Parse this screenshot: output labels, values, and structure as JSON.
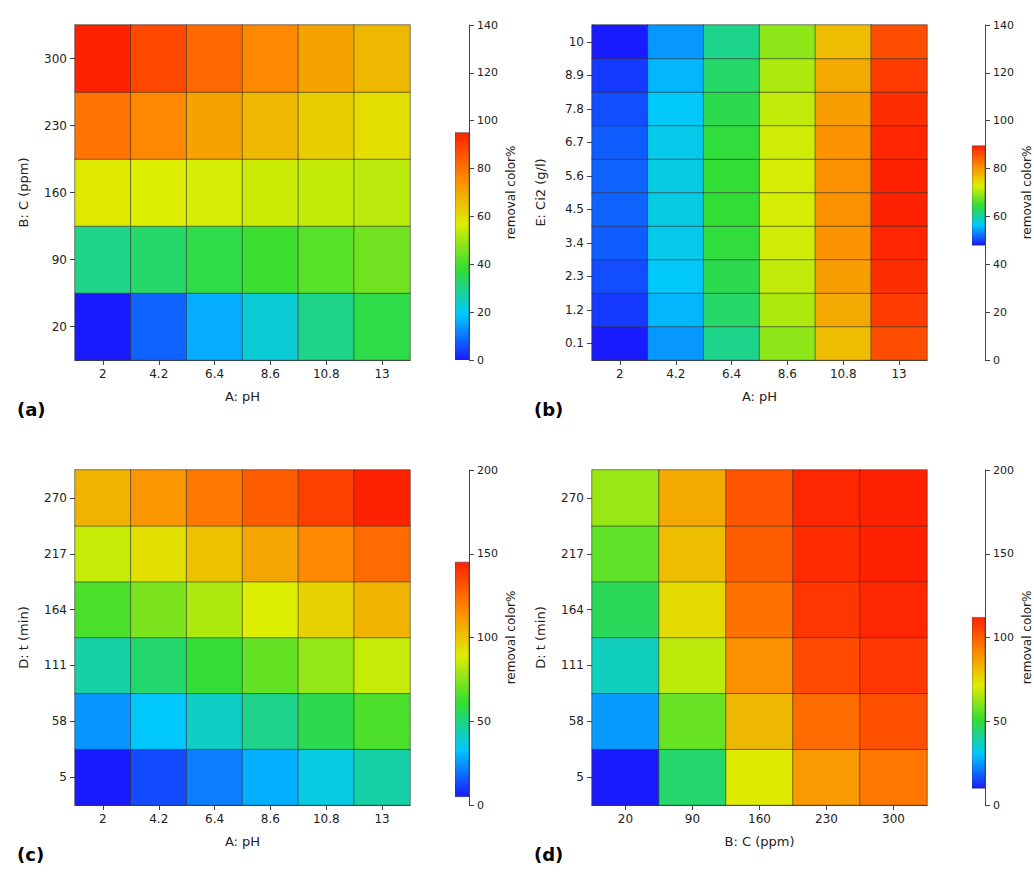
{
  "chart_data": [
    {
      "type": "heatmap",
      "title": "(a)",
      "x_label": "A: pH",
      "y_label": "B: C (ppm)",
      "z_label": "removal color%",
      "x": [
        2,
        4.2,
        6.4,
        8.6,
        10.8,
        13
      ],
      "y": [
        20,
        90,
        160,
        230,
        300
      ],
      "values": [
        [
          0,
          8,
          16,
          23,
          30,
          36
        ],
        [
          30,
          33,
          36,
          39,
          42,
          45
        ],
        [
          58,
          57,
          56,
          55,
          54,
          53
        ],
        [
          80,
          76,
          71,
          67,
          63,
          60
        ],
        [
          95,
          88,
          82,
          76,
          71,
          67
        ]
      ],
      "zlim": [
        0,
        140
      ],
      "zticks": [
        0,
        20,
        40,
        60,
        80,
        100,
        120,
        140
      ]
    },
    {
      "type": "heatmap",
      "title": "(b)",
      "x_label": "A: pH",
      "y_label": "E: Ci2 (g/l)",
      "z_label": "removal color%",
      "x": [
        2,
        4.2,
        6.4,
        8.6,
        10.8,
        13
      ],
      "y": [
        0.1,
        1.2,
        2.3,
        3.4,
        4.5,
        5.6,
        6.7,
        7.8,
        8.9,
        10
      ],
      "values": [
        [
          48,
          54,
          61,
          69,
          77,
          86
        ],
        [
          49.5,
          55.5,
          62.5,
          70.5,
          78.5,
          87.5
        ],
        [
          50.5,
          56.5,
          63.5,
          71.5,
          79.5,
          88.5
        ],
        [
          51.2,
          57.2,
          64.2,
          72.2,
          80.2,
          89.2
        ],
        [
          51.5,
          57.5,
          64.5,
          72.5,
          80.5,
          89.5
        ],
        [
          51.5,
          57.5,
          64.5,
          72.5,
          80.5,
          89.5
        ],
        [
          51.2,
          57.2,
          64.2,
          72.2,
          80.2,
          89.2
        ],
        [
          50.5,
          56.5,
          63.5,
          71.5,
          79.5,
          88.5
        ],
        [
          49.5,
          55.5,
          62.5,
          70.5,
          78.5,
          87.5
        ],
        [
          48,
          54,
          61,
          69,
          77,
          86
        ]
      ],
      "zlim": [
        0,
        140
      ],
      "zticks": [
        0,
        20,
        40,
        60,
        80,
        100,
        120,
        140
      ]
    },
    {
      "type": "heatmap",
      "title": "(c)",
      "x_label": "A: pH",
      "y_label": "D: t (min)",
      "z_label": "removal color%",
      "x": [
        2,
        4.2,
        6.4,
        8.6,
        10.8,
        13
      ],
      "y": [
        5,
        58,
        111,
        164,
        217,
        270
      ],
      "values": [
        [
          5,
          13,
          21,
          29,
          37,
          45
        ],
        [
          25,
          33,
          41,
          49,
          57,
          65
        ],
        [
          45,
          53,
          61,
          69,
          77,
          85
        ],
        [
          65,
          73,
          81,
          89,
          97,
          105
        ],
        [
          85,
          93,
          101,
          109,
          117,
          125
        ],
        [
          105,
          113,
          121,
          129,
          137,
          145
        ]
      ],
      "zlim": [
        0,
        200
      ],
      "zticks": [
        0,
        50,
        100,
        150,
        200
      ]
    },
    {
      "type": "heatmap",
      "title": "(d)",
      "x_label": "B: C (ppm)",
      "y_label": "D: t (min)",
      "z_label": "removal color%",
      "x": [
        20,
        90,
        160,
        230,
        300
      ],
      "y": [
        5,
        58,
        111,
        164,
        217,
        270
      ],
      "values": [
        [
          10,
          45,
          72,
          88,
          95
        ],
        [
          25,
          57,
          82,
          97,
          103
        ],
        [
          37,
          67,
          90,
          104,
          108
        ],
        [
          47,
          75,
          96,
          108,
          111
        ],
        [
          56,
          81,
          100,
          110,
          112
        ],
        [
          63,
          85,
          102,
          111,
          112
        ]
      ],
      "zlim": [
        0,
        200
      ],
      "zticks": [
        0,
        50,
        100,
        150,
        200
      ]
    }
  ]
}
